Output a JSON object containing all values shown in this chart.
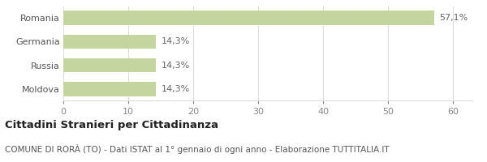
{
  "categories": [
    "Moldova",
    "Russia",
    "Germania",
    "Romania"
  ],
  "values": [
    14.3,
    14.3,
    14.3,
    57.1
  ],
  "labels": [
    "14,3%",
    "14,3%",
    "14,3%",
    "57,1%"
  ],
  "bar_color": "#c5d5a0",
  "xlim": [
    0,
    63
  ],
  "xticks": [
    0,
    10,
    20,
    30,
    40,
    50,
    60
  ],
  "title_bold": "Cittadini Stranieri per Cittadinanza",
  "subtitle": "COMUNE DI RORÀ (TO) - Dati ISTAT al 1° gennaio di ogni anno - Elaborazione TUTTITALIA.IT",
  "background_color": "#ffffff",
  "grid_color": "#dddddd",
  "label_fontsize": 8,
  "tick_fontsize": 8,
  "ylabel_fontsize": 8,
  "title_fontsize": 9.5,
  "subtitle_fontsize": 7.5
}
